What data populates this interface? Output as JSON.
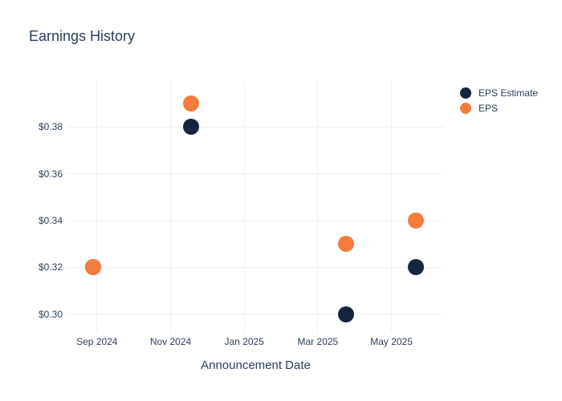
{
  "page": {
    "background": "#ffffff"
  },
  "chart_data": {
    "type": "scatter",
    "title": "Earnings History",
    "xlabel": "Announcement Date",
    "ylabel": "",
    "grid": true,
    "grid_color": "#edf0f7",
    "text_color": "#2a3f5f",
    "legend_position": "right",
    "x_range": [
      "2024-08-07",
      "2025-06-14"
    ],
    "y_range": [
      0.292,
      0.4
    ],
    "x_ticks": [
      {
        "date": "2024-09-01",
        "label": "Sep 2024"
      },
      {
        "date": "2024-11-01",
        "label": "Nov 2024"
      },
      {
        "date": "2025-01-01",
        "label": "Jan 2025"
      },
      {
        "date": "2025-03-01",
        "label": "Mar 2025"
      },
      {
        "date": "2025-05-01",
        "label": "May 2025"
      }
    ],
    "y_ticks": [
      {
        "value": 0.3,
        "label": "$0.30"
      },
      {
        "value": 0.32,
        "label": "$0.32"
      },
      {
        "value": 0.34,
        "label": "$0.34"
      },
      {
        "value": 0.36,
        "label": "$0.36"
      },
      {
        "value": 0.38,
        "label": "$0.38"
      }
    ],
    "series": [
      {
        "name": "EPS Estimate",
        "key": "eps_estimate",
        "color": "#15253f"
      },
      {
        "name": "EPS",
        "key": "eps",
        "color": "#f47c3c"
      }
    ],
    "points": [
      {
        "date_est": "2024-08-28",
        "eps_estimate": 0.32,
        "eps": 0.32
      },
      {
        "date_est": "2024-11-18",
        "eps_estimate": 0.38,
        "eps": 0.39
      },
      {
        "date_est": "2025-03-24",
        "eps_estimate": 0.3,
        "eps": 0.33
      },
      {
        "date_est": "2025-05-21",
        "eps_estimate": 0.32,
        "eps": 0.34
      }
    ]
  }
}
